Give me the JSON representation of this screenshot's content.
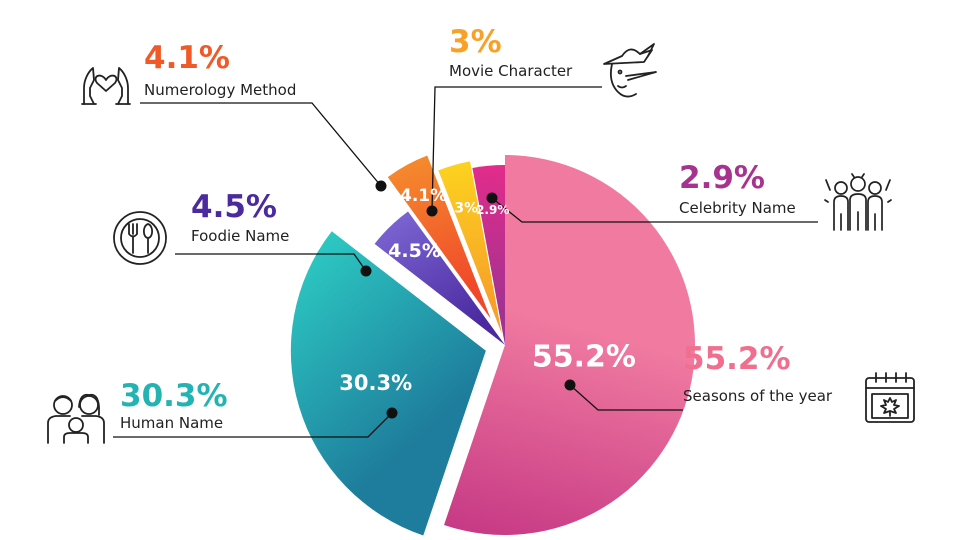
{
  "chart_data": {
    "type": "pie",
    "style": "exploded radial pie with callout labels",
    "slices": [
      {
        "name": "Seasons of the year",
        "value": 55.2,
        "label": "55.2%",
        "color": "#e3508c",
        "color_start": "#f07aa0",
        "color_end": "#c73a85",
        "icon": "calendar-leaf-icon"
      },
      {
        "name": "Human Name",
        "value": 30.3,
        "label": "30.3%",
        "color": "#20aab0",
        "color_start": "#1e7d9c",
        "color_end": "#2cc8c2",
        "icon": "family-icon"
      },
      {
        "name": "Foodie Name",
        "value": 4.5,
        "label": "4.5%",
        "color": "#5a3aae",
        "color_start": "#4b2aa0",
        "color_end": "#7a63d1",
        "icon": "plate-cutlery-icon"
      },
      {
        "name": "Numerology Method",
        "value": 4.1,
        "label": "4.1%",
        "color": "#f05a28",
        "color_start": "#f0482a",
        "color_end": "#f58a2d",
        "icon": "hands-heart-icon"
      },
      {
        "name": "Movie Character",
        "value": 3,
        "label": "3%",
        "color": "#f8b626",
        "color_start": "#f7a128",
        "color_end": "#fcd21f",
        "icon": "character-hat-icon"
      },
      {
        "name": "Celebrity Name",
        "value": 2.9,
        "label": "2.9%",
        "color": "#c42b8e",
        "color_start": "#a23292",
        "color_end": "#e32c8a",
        "icon": "group-celebration-icon"
      }
    ],
    "callouts": [
      {
        "pct": "55.2%",
        "name": "Seasons of the year",
        "pct_color": "#f06e8e"
      },
      {
        "pct": "30.3%",
        "name": "Human Name",
        "pct_color": "#23b3b3"
      },
      {
        "pct": "4.5%",
        "name": "Foodie Name",
        "pct_color": "#4b2aa0"
      },
      {
        "pct": "4.1%",
        "name": "Numerology Method",
        "pct_color": "#f05a28"
      },
      {
        "pct": "3%",
        "name": "Movie Character",
        "pct_color": "#f7a128"
      },
      {
        "pct": "2.9%",
        "name": "Celebrity Name",
        "pct_color": "#a8328f"
      }
    ]
  }
}
